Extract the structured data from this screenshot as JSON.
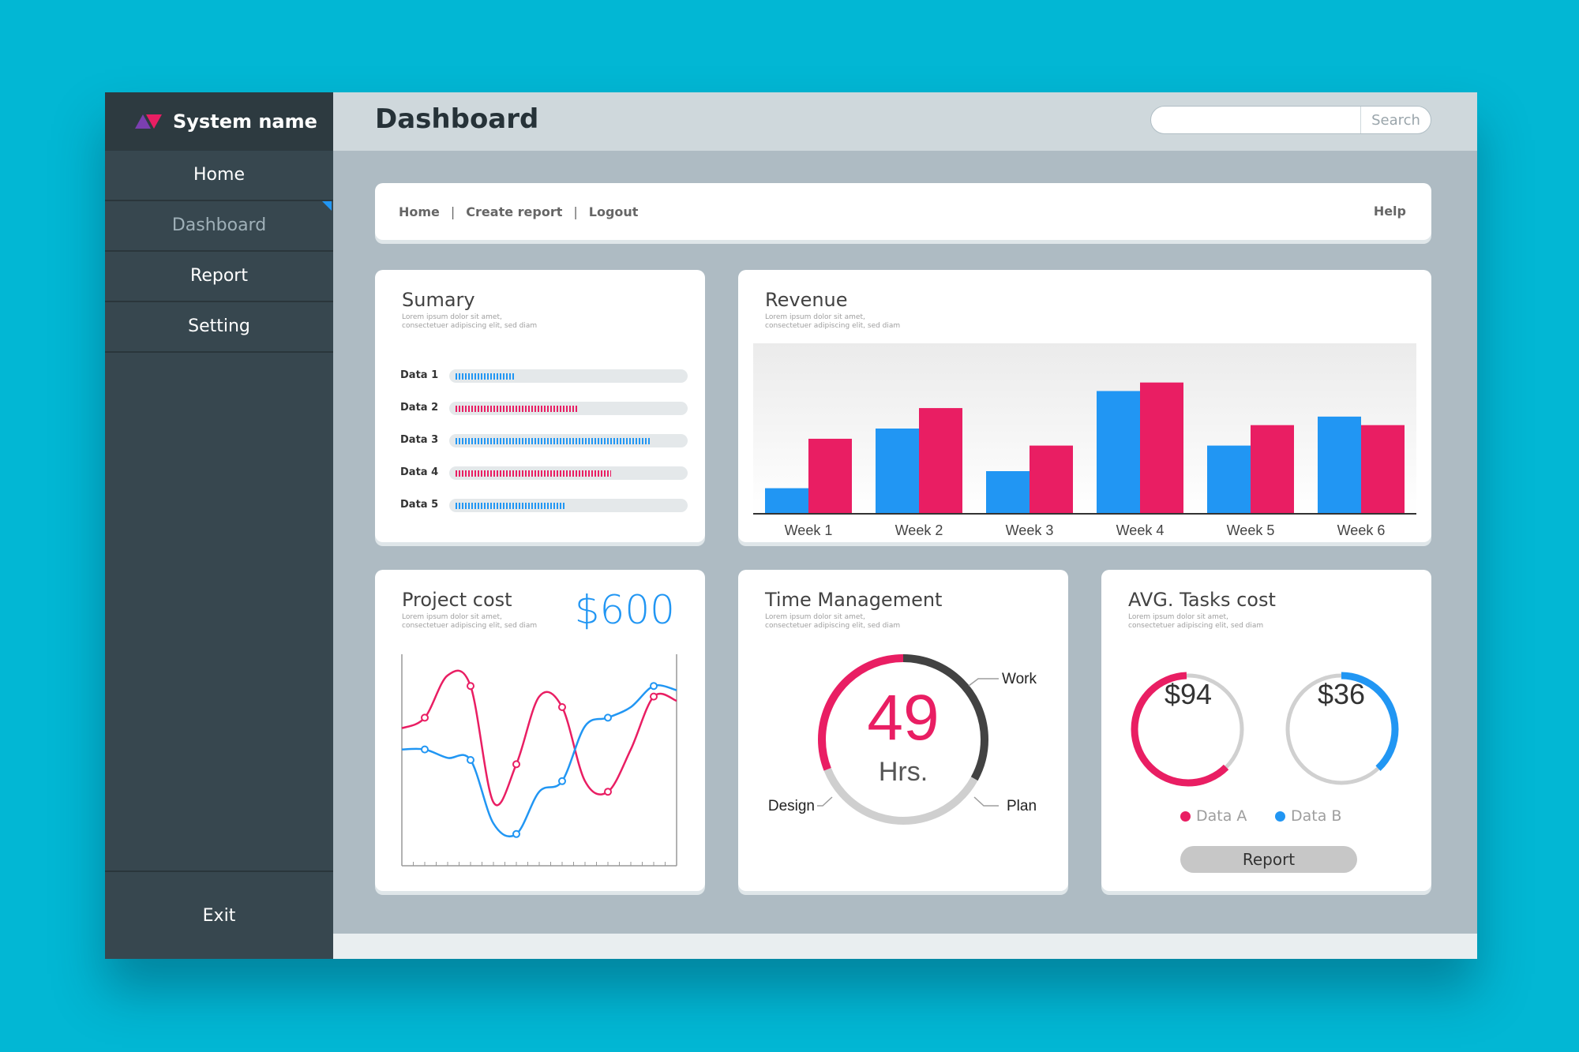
{
  "app": {
    "brand": "System name",
    "page_title": "Dashboard"
  },
  "sidebar": {
    "items": [
      {
        "label": "Home"
      },
      {
        "label": "Dashboard",
        "active": true
      },
      {
        "label": "Report"
      },
      {
        "label": "Setting"
      }
    ],
    "exit_label": "Exit"
  },
  "search": {
    "value": "",
    "placeholder": "",
    "button_label": "Search"
  },
  "links": {
    "home": "Home",
    "create_report": "Create report",
    "logout": "Logout",
    "separator": "|",
    "help": "Help"
  },
  "colors": {
    "blue": "#2196f3",
    "pink": "#e91e63",
    "dark": "#424242",
    "grey": "#cfcfcf"
  },
  "summary": {
    "title": "Sumary",
    "subtitle_1": "Lorem ipsum dolor sit amet,",
    "subtitle_2": "consectetuer adipiscing elit, sed diam",
    "rows": [
      {
        "label": "Data 1",
        "value": 0.26,
        "color": "#2196f3"
      },
      {
        "label": "Data 2",
        "value": 0.54,
        "color": "#e91e63"
      },
      {
        "label": "Data 3",
        "value": 0.86,
        "color": "#2196f3"
      },
      {
        "label": "Data 4",
        "value": 0.69,
        "color": "#e91e63"
      },
      {
        "label": "Data 5",
        "value": 0.49,
        "color": "#2196f3"
      }
    ]
  },
  "revenue": {
    "title": "Revenue",
    "subtitle_1": "Lorem ipsum dolor sit amet,",
    "subtitle_2": "consectetuer adipiscing elit, sed diam"
  },
  "chart_data": [
    {
      "type": "bar",
      "categories": [
        "Week 1",
        "Week 2",
        "Week 3",
        "Week 4",
        "Week 5",
        "Week 6"
      ],
      "series": [
        {
          "values": [
            15,
            50,
            25,
            72,
            40,
            57
          ],
          "color": "#2196f3"
        },
        {
          "values": [
            44,
            62,
            40,
            77,
            52,
            52
          ],
          "color": "#e91e63"
        }
      ],
      "ylim": [
        0,
        100
      ],
      "grid": false
    },
    {
      "type": "line",
      "x": [
        0,
        1,
        2,
        3,
        4,
        5,
        6,
        7,
        8,
        9,
        10,
        11,
        12
      ],
      "series": [
        {
          "values": [
            65,
            70,
            90,
            85,
            30,
            48,
            80,
            75,
            40,
            35,
            55,
            80,
            78
          ],
          "color": "#e91e63"
        },
        {
          "values": [
            55,
            55,
            51,
            50,
            20,
            15,
            35,
            40,
            66,
            70,
            75,
            85,
            83
          ],
          "color": "#2196f3"
        }
      ],
      "ylim": [
        0,
        100
      ]
    }
  ],
  "project_cost": {
    "title": "Project cost",
    "amount": "$600",
    "subtitle_1": "Lorem ipsum dolor sit amet,",
    "subtitle_2": "consectetuer adipiscing elit, sed diam"
  },
  "time_management": {
    "title": "Time Management",
    "subtitle_1": "Lorem ipsum dolor sit amet,",
    "subtitle_2": "consectetuer adipiscing elit, sed diam",
    "value": "49",
    "unit": "Hrs.",
    "segments": [
      {
        "label": "Work",
        "fraction": 0.33,
        "color": "#424242"
      },
      {
        "label": "Plan",
        "fraction": 0.36,
        "color": "#cfcfcf"
      },
      {
        "label": "Design",
        "fraction": 0.31,
        "color": "#e91e63"
      }
    ]
  },
  "avg_tasks": {
    "title": "AVG. Tasks cost",
    "subtitle_1": "Lorem ipsum dolor sit amet,",
    "subtitle_2": "consectetuer adipiscing elit, sed diam",
    "donuts": [
      {
        "value": "$94",
        "fraction": 0.62,
        "color": "#e91e63"
      },
      {
        "value": "$36",
        "fraction": 0.38,
        "color": "#2196f3"
      }
    ],
    "legend": [
      {
        "label": "Data A",
        "color": "#e91e63"
      },
      {
        "label": "Data B",
        "color": "#2196f3"
      }
    ],
    "report_label": "Report"
  }
}
